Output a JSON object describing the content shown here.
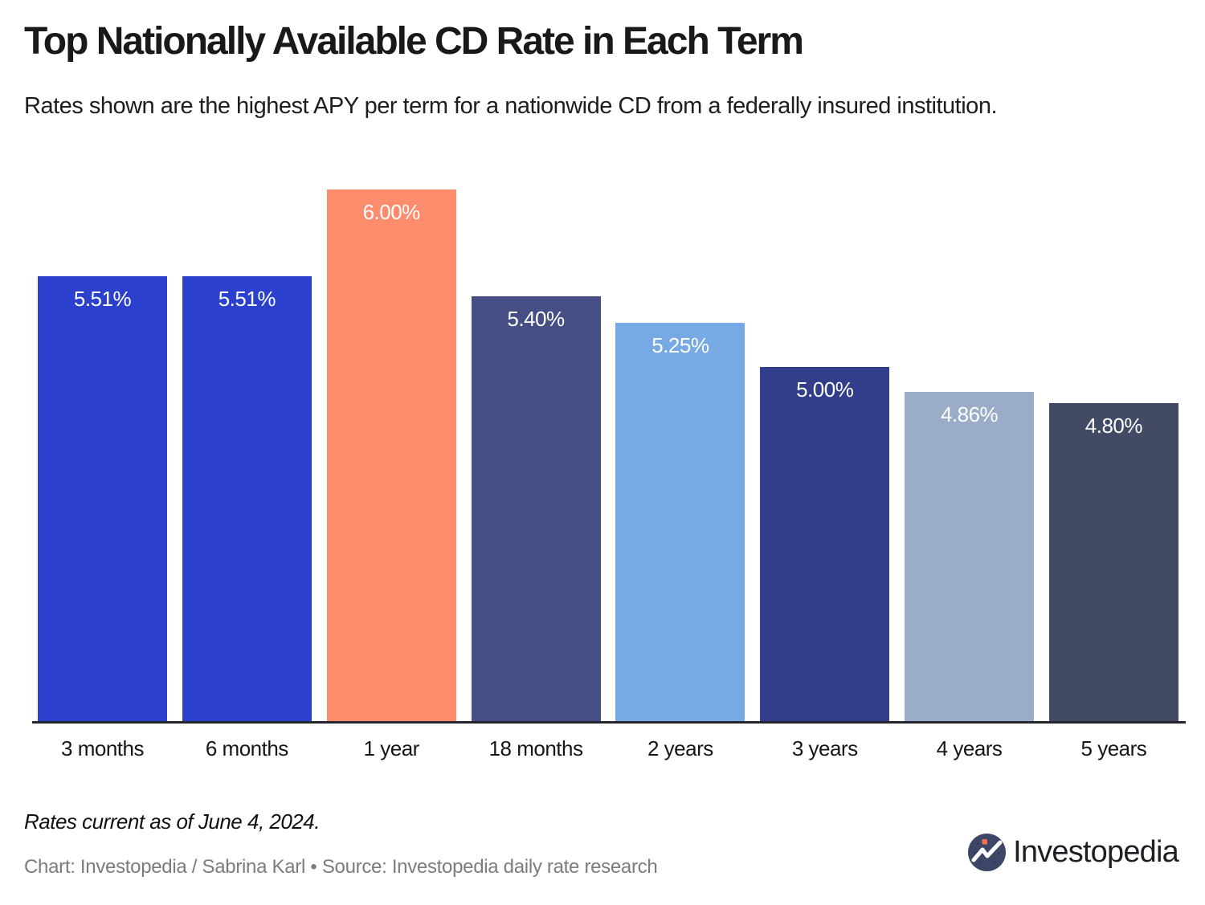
{
  "header": {
    "title": "Top Nationally Available CD Rate in Each Term",
    "subtitle": "Rates shown are the highest APY per term for a nationwide CD from a federally insured institution."
  },
  "chart_data": {
    "type": "bar",
    "title": "Top Nationally Available CD Rate in Each Term",
    "subtitle": "Rates shown are the highest APY per term for a nationwide CD from a federally insured institution.",
    "categories": [
      "3 months",
      "6 months",
      "1 year",
      "18 months",
      "2 years",
      "3 years",
      "4 years",
      "5 years"
    ],
    "values": [
      5.51,
      5.51,
      6.0,
      5.4,
      5.25,
      5.0,
      4.86,
      4.8
    ],
    "value_labels": [
      "5.51%",
      "5.51%",
      "6.00%",
      "5.40%",
      "5.25%",
      "5.00%",
      "4.86%",
      "4.80%"
    ],
    "bar_colors": [
      "#2B41CE",
      "#2B41CE",
      "#FD8C6C",
      "#454E85",
      "#77A9E4",
      "#323D8B",
      "#9AACC8",
      "#424A66"
    ],
    "xlabel": "",
    "ylabel": "",
    "ylim": [
      3.0,
      6.0
    ],
    "grid": false,
    "legend": false,
    "data_label_color": "#ffffff",
    "axis_line_color": "#26262e",
    "highlighted_category": "1 year",
    "highlight_color": "#FD8C6C"
  },
  "footer": {
    "note": "Rates current as of June 4, 2024.",
    "credit": "Chart: Investopedia / Sabrina Karl • Source: Investopedia daily rate research",
    "logo_text": "Investopedia"
  },
  "logo_colors": {
    "circle": "#3D4667",
    "glyph": "#ffffff",
    "dot": "#F0714B"
  }
}
